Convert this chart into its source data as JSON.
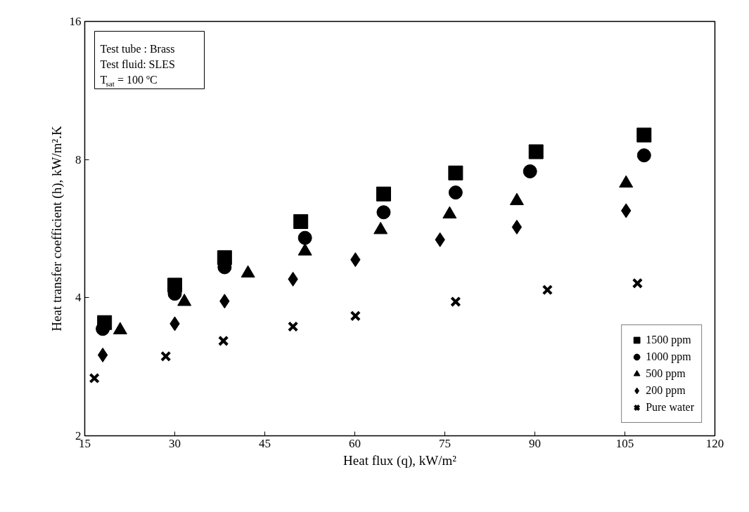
{
  "chart_data": {
    "type": "scatter",
    "xlabel": "Heat flux (q), kW/m²",
    "ylabel": "Heat transfer coefficient (h), kW/m².K",
    "log": "y",
    "xlim": [
      15,
      120
    ],
    "xticks": [
      15,
      30,
      45,
      60,
      75,
      90,
      105,
      120
    ],
    "ylim": [
      2,
      16
    ],
    "yticks": [
      2,
      4,
      8,
      16
    ],
    "legend": "bottom right",
    "annotations": [
      "Test tube : Brass",
      "Test  fluid: SLES",
      "T$_{sat}$ = 100 ºC"
    ],
    "series": [
      {
        "name": "1500 ppm",
        "color": "#000000",
        "marker": "square",
        "x": [
          18.3,
          30.0,
          38.3,
          51.0,
          64.8,
          76.8,
          90.2,
          108.2
        ],
        "values": [
          3.53,
          4.26,
          4.89,
          5.86,
          6.73,
          7.48,
          8.32,
          9.05
        ]
      },
      {
        "name": "1000 ppm",
        "color": "#000000",
        "marker": "circle",
        "x": [
          18.0,
          30.0,
          38.3,
          51.7,
          64.8,
          76.8,
          89.2,
          108.2
        ],
        "values": [
          3.42,
          4.08,
          4.66,
          5.4,
          6.14,
          6.78,
          7.54,
          8.17
        ]
      },
      {
        "name": "500 ppm",
        "color": "#000000",
        "marker": "triangle",
        "x": [
          20.9,
          31.6,
          42.2,
          51.7,
          64.3,
          75.8,
          87.0,
          105.2
        ],
        "values": [
          3.4,
          3.92,
          4.52,
          5.05,
          5.62,
          6.08,
          6.5,
          7.1
        ]
      },
      {
        "name": "200 ppm",
        "color": "#000000",
        "marker": "diamond",
        "x": [
          18.0,
          30.0,
          38.3,
          49.7,
          60.1,
          74.2,
          87.0,
          105.2
        ],
        "values": [
          3.0,
          3.51,
          3.93,
          4.39,
          4.84,
          5.35,
          5.7,
          6.19
        ]
      },
      {
        "name": "Pure water",
        "color": "#000000",
        "marker": "cross",
        "x": [
          16.6,
          28.5,
          38.1,
          49.7,
          60.1,
          76.8,
          92.1,
          107.1
        ],
        "values": [
          2.67,
          2.98,
          3.22,
          3.46,
          3.65,
          3.92,
          4.16,
          4.3
        ]
      }
    ]
  }
}
